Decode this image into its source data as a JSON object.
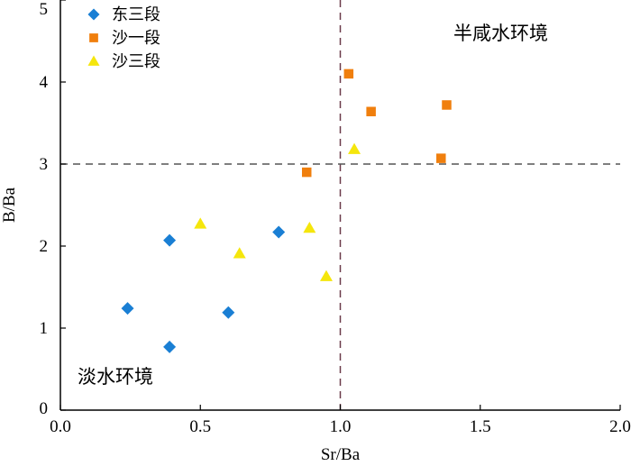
{
  "chart_data": {
    "type": "scatter",
    "xlabel": "Sr/Ba",
    "ylabel": "B/Ba",
    "xlim": [
      0.0,
      2.0
    ],
    "ylim": [
      0,
      5
    ],
    "xticks": [
      "0.0",
      "0.5",
      "1.0",
      "1.5",
      "2.0"
    ],
    "yticks": [
      "0",
      "1",
      "2",
      "3",
      "4",
      "5"
    ],
    "reference_lines": [
      {
        "axis": "x",
        "value": 1.0,
        "style": "dashed",
        "color": "#6b3a4a"
      },
      {
        "axis": "y",
        "value": 3.0,
        "style": "dashed",
        "color": "#555555"
      }
    ],
    "legend_position": "top-left",
    "annotations": [
      {
        "text": "半咸水环境",
        "region": "top-right"
      },
      {
        "text": "淡水环境",
        "region": "bottom-left"
      }
    ],
    "series": [
      {
        "name": "东三段",
        "marker": "diamond",
        "color": "#1a7fd4",
        "points": [
          [
            0.24,
            1.24
          ],
          [
            0.39,
            2.07
          ],
          [
            0.39,
            0.77
          ],
          [
            0.6,
            1.19
          ],
          [
            0.78,
            2.17
          ]
        ]
      },
      {
        "name": "沙一段",
        "marker": "square",
        "color": "#f07f0d",
        "points": [
          [
            0.88,
            2.9
          ],
          [
            1.03,
            4.1
          ],
          [
            1.11,
            3.64
          ],
          [
            1.36,
            3.07
          ],
          [
            1.38,
            3.72
          ]
        ]
      },
      {
        "name": "沙三段",
        "marker": "triangle",
        "color": "#f5e60c",
        "points": [
          [
            0.5,
            2.27
          ],
          [
            0.64,
            1.91
          ],
          [
            0.89,
            2.22
          ],
          [
            0.95,
            1.63
          ],
          [
            1.05,
            3.18
          ]
        ]
      }
    ]
  }
}
